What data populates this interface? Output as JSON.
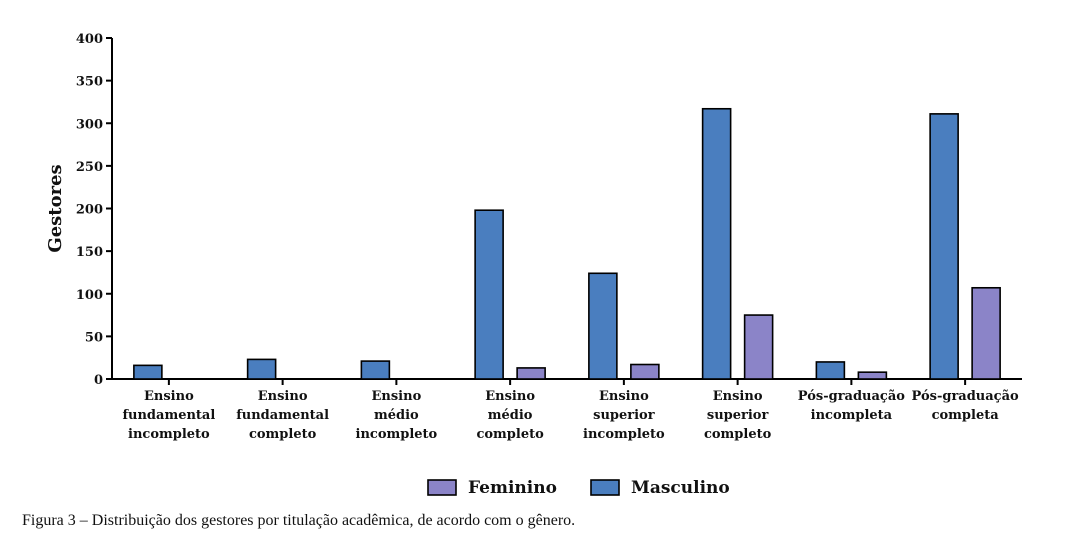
{
  "caption": "Figura 3 – Distribuição dos gestores por titulação acadêmica, de acordo com o gênero.",
  "chart_data": {
    "type": "bar",
    "ylabel": "Gestores",
    "xlabel": "",
    "ylim": [
      0,
      400
    ],
    "yticks": [
      0,
      50,
      100,
      150,
      200,
      250,
      300,
      350,
      400
    ],
    "grid": false,
    "legend_placement": "bottom-center",
    "categories": [
      [
        "Ensino",
        "fundamental",
        "incompleto"
      ],
      [
        "Ensino",
        "fundamental",
        "completo"
      ],
      [
        "Ensino",
        "médio",
        "incompleto"
      ],
      [
        "Ensino",
        "médio",
        "completo"
      ],
      [
        "Ensino",
        "superior",
        "incompleto"
      ],
      [
        "Ensino",
        "superior",
        "completo"
      ],
      [
        "Pós-graduação",
        "incompleta"
      ],
      [
        "Pós-graduação",
        "completa"
      ]
    ],
    "series": [
      {
        "name": "Masculino",
        "color": "#4a7ebf",
        "values": [
          16,
          23,
          21,
          198,
          124,
          317,
          20,
          311
        ]
      },
      {
        "name": "Feminino",
        "color": "#8b84c8",
        "values": [
          0,
          0,
          0,
          13,
          17,
          75,
          8,
          107
        ]
      }
    ],
    "legend_order": [
      "Feminino",
      "Masculino"
    ]
  }
}
